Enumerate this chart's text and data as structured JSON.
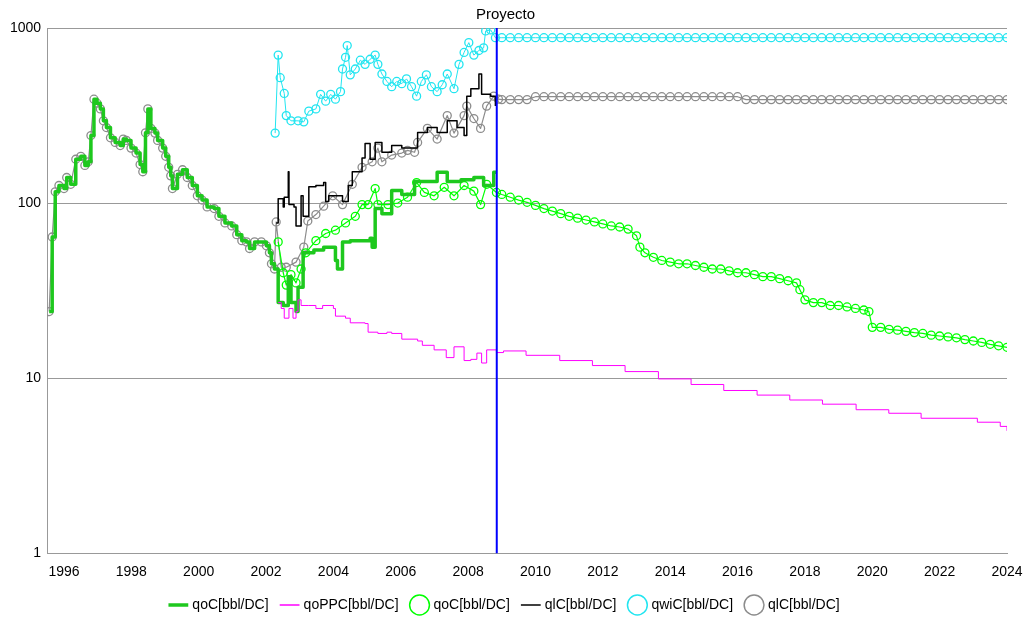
{
  "chart_data": {
    "type": "line",
    "title": "Proyecto",
    "xlim": [
      1995.5,
      2024
    ],
    "xticks": [
      1996,
      1998,
      2000,
      2002,
      2004,
      2006,
      2008,
      2010,
      2012,
      2014,
      2016,
      2018,
      2020,
      2022,
      2024
    ],
    "ylim": [
      1,
      1000
    ],
    "yticks": [
      1,
      10,
      100,
      1000
    ],
    "log": "y",
    "grid": "y",
    "legend": "bottom",
    "ref_lines": [
      {
        "axis": "x",
        "value": 2008.85,
        "color": "#0000ff"
      }
    ],
    "series": [
      {
        "name": "qoC[bbl/DC]",
        "type": "step",
        "marker": "none",
        "color": "#1ec81e",
        "x": [
          1995.56,
          1995.65,
          1995.74,
          1995.85,
          1996.0,
          1996.08,
          1996.2,
          1996.35,
          1996.5,
          1996.62,
          1996.72,
          1996.8,
          1996.89,
          1996.98,
          1997.08,
          1997.17,
          1997.26,
          1997.38,
          1997.52,
          1997.67,
          1997.76,
          1997.85,
          1997.99,
          1998.14,
          1998.26,
          1998.34,
          1998.42,
          1998.49,
          1998.58,
          1998.7,
          1998.78,
          1998.93,
          1999.02,
          1999.11,
          1999.17,
          1999.22,
          1999.37,
          1999.52,
          1999.66,
          1999.81,
          1999.96,
          2000.1,
          2000.25,
          2000.46,
          2000.6,
          2000.78,
          2000.98,
          2001.13,
          2001.28,
          2001.42,
          2001.51,
          2001.66,
          2001.86,
          2002.01,
          2002.1,
          2002.16,
          2002.25,
          2002.36,
          2002.51,
          2002.66,
          2002.74,
          2002.89,
          2002.95,
          2003.1,
          2003.42,
          2003.71,
          2004.06,
          2004.12,
          2004.27,
          2004.5,
          2004.65,
          2005.09,
          2005.15,
          2005.24,
          2005.44,
          2005.73,
          2006.03,
          2006.41,
          2006.79,
          2007.08,
          2007.38,
          2007.79,
          2008.17,
          2008.46,
          2008.76,
          2008.84
        ],
        "values": [
          24,
          64,
          116,
          126,
          121,
          140,
          128,
          178,
          185,
          164,
          172,
          243,
          392,
          372,
          345,
          295,
          270,
          236,
          222,
          213,
          232,
          228,
          206,
          193,
          166,
          151,
          252,
          345,
          267,
          251,
          228,
          206,
          185,
          160,
          143,
          121,
          146,
          155,
          140,
          126,
          110,
          104,
          95,
          93,
          84,
          77,
          74,
          66,
          61,
          60,
          55,
          60,
          60,
          57,
          52,
          45,
          42,
          27,
          26,
          38,
          27,
          24,
          33,
          52,
          54,
          56,
          47,
          42,
          60,
          61,
          61,
          63,
          56,
          93,
          87,
          118,
          112,
          133,
          133,
          150,
          133,
          136,
          140,
          126,
          150,
          150
        ]
      },
      {
        "name": "qoPPC[bbl/DC]",
        "type": "step",
        "marker": "none",
        "color": "#ff00ff",
        "x": [
          2002.36,
          2002.45,
          2002.54,
          2002.68,
          2002.8,
          2002.89,
          2002.95,
          2003.04,
          2003.27,
          2003.48,
          2003.68,
          2004.0,
          2004.06,
          2004.36,
          2004.5,
          2004.94,
          2005.03,
          2005.32,
          2005.59,
          2005.73,
          2006.03,
          2006.5,
          2006.64,
          2006.99,
          2007.35,
          2007.58,
          2007.88,
          2008.08,
          2008.26,
          2008.4,
          2008.55,
          2008.84,
          2009.05,
          2009.72,
          2010.72,
          2011.69,
          2012.66,
          2013.65,
          2014.62,
          2015.59,
          2016.58,
          2017.55,
          2018.52,
          2019.52,
          2020.49,
          2021.45,
          2023.12,
          2023.8,
          2024.0
        ],
        "values": [
          27,
          25,
          22,
          25,
          22,
          24,
          28,
          26,
          26,
          25,
          26,
          25,
          22.6,
          22,
          20.7,
          20.5,
          18.3,
          18,
          18.3,
          18,
          16.7,
          16.3,
          15.4,
          14.5,
          13.1,
          15.1,
          12.6,
          12.8,
          13.9,
          12.2,
          14.5,
          14,
          14.3,
          13.5,
          12.6,
          11.8,
          10.9,
          9.9,
          9.2,
          8.5,
          8,
          7.5,
          7.1,
          6.6,
          6.3,
          5.9,
          5.6,
          5.3,
          5.0
        ]
      },
      {
        "name": "qoC[bbl/DC]",
        "marker": "circle",
        "color": "#00ff00",
        "x": [
          2002.36,
          2002.51,
          2002.6,
          2002.74,
          2002.89,
          2003.04,
          2003.18,
          2003.48,
          2003.77,
          2004.06,
          2004.36,
          2004.65,
          2004.85,
          2005.03,
          2005.24,
          2005.32,
          2005.62,
          2005.91,
          2006.2,
          2006.47,
          2006.7,
          2006.99,
          2007.29,
          2007.58,
          2007.88,
          2008.17,
          2008.37,
          2008.55,
          2008.84,
          2009.0,
          2009.25,
          2009.5,
          2009.75,
          2010.0,
          2010.25,
          2010.5,
          2010.75,
          2011.0,
          2011.25,
          2011.5,
          2011.75,
          2012.0,
          2012.25,
          2012.5,
          2012.75,
          2013.0,
          2013.1,
          2013.25,
          2013.5,
          2013.75,
          2014.0,
          2014.25,
          2014.5,
          2014.75,
          2015.0,
          2015.25,
          2015.5,
          2015.75,
          2016.0,
          2016.25,
          2016.5,
          2016.75,
          2017.0,
          2017.25,
          2017.5,
          2017.75,
          2017.85,
          2018.0,
          2018.25,
          2018.5,
          2018.75,
          2019.0,
          2019.25,
          2019.5,
          2019.75,
          2019.9,
          2020.0,
          2020.25,
          2020.5,
          2020.75,
          2021.0,
          2021.25,
          2021.5,
          2021.75,
          2022.0,
          2022.25,
          2022.5,
          2022.75,
          2023.0,
          2023.25,
          2023.5,
          2023.75,
          2024.0
        ],
        "values": [
          60,
          40,
          34,
          39,
          35,
          42,
          52,
          61,
          67,
          70,
          77,
          84,
          98,
          98,
          121,
          98,
          98,
          100,
          108,
          131,
          115,
          110,
          123,
          110,
          126,
          117,
          98,
          128,
          115,
          112,
          108,
          104,
          101,
          97,
          93,
          90,
          87,
          84,
          82,
          80,
          78,
          76,
          74,
          73,
          71,
          65,
          56,
          52,
          49,
          47,
          46,
          45,
          45,
          44,
          43,
          42,
          42,
          41,
          40,
          40,
          39,
          38,
          38,
          37,
          36,
          35,
          32,
          28,
          27,
          27,
          26,
          26,
          25.5,
          25,
          24.5,
          24,
          19.5,
          19.5,
          19,
          18.8,
          18.5,
          18.2,
          18,
          17.6,
          17.4,
          17.2,
          17,
          16.6,
          16.3,
          16,
          15.6,
          15.3,
          15
        ]
      },
      {
        "name": "qlC[bbl/DC]",
        "type": "step",
        "marker": "none",
        "color": "#000000",
        "x": [
          2002.3,
          2002.36,
          2002.51,
          2002.54,
          2002.66,
          2002.68,
          2002.83,
          2002.89,
          2003.04,
          2003.1,
          2003.27,
          2003.48,
          2003.71,
          2003.77,
          2003.86,
          2004.27,
          2004.44,
          2004.56,
          2004.85,
          2004.94,
          2005.09,
          2005.24,
          2005.44,
          2005.73,
          2006.03,
          2006.2,
          2006.5,
          2006.79,
          2007.08,
          2007.38,
          2007.67,
          2007.88,
          2007.96,
          2008.08,
          2008.32,
          2008.4,
          2008.67,
          2008.81
        ],
        "values": [
          77,
          106,
          95,
          108,
          151,
          98,
          95,
          74,
          110,
          84,
          124,
          126,
          131,
          102,
          110,
          102,
          126,
          151,
          181,
          219,
          178,
          222,
          195,
          213,
          206,
          206,
          253,
          270,
          253,
          295,
          270,
          243,
          408,
          450,
          546,
          418,
          408,
          358
        ]
      },
      {
        "name": "qwiC[bbl/DC]",
        "marker": "circle",
        "color": "#22e5f0",
        "x": [
          2002.27,
          2002.36,
          2002.42,
          2002.54,
          2002.6,
          2002.74,
          2002.95,
          2003.12,
          2003.27,
          2003.48,
          2003.62,
          2003.77,
          2003.92,
          2004.06,
          2004.21,
          2004.27,
          2004.36,
          2004.41,
          2004.5,
          2004.65,
          2004.8,
          2004.94,
          2005.09,
          2005.24,
          2005.32,
          2005.44,
          2005.59,
          2005.73,
          2005.88,
          2006.03,
          2006.17,
          2006.32,
          2006.47,
          2006.61,
          2006.76,
          2006.91,
          2007.08,
          2007.23,
          2007.38,
          2007.58,
          2007.73,
          2007.88,
          2008.02,
          2008.17,
          2008.32,
          2008.46,
          2008.52,
          2008.67,
          2008.81,
          2009.0,
          2009.25,
          2009.5,
          2009.75,
          2010.0,
          2010.25,
          2010.5,
          2010.75,
          2011.0,
          2011.25,
          2011.5,
          2011.75,
          2012.0,
          2012.25,
          2012.5,
          2012.75,
          2013.0,
          2013.25,
          2013.5,
          2013.75,
          2014.0,
          2014.25,
          2014.5,
          2014.75,
          2015.0,
          2015.25,
          2015.5,
          2015.75,
          2016.0,
          2016.25,
          2016.5,
          2016.75,
          2017.0,
          2017.25,
          2017.5,
          2017.75,
          2018.0,
          2018.25,
          2018.5,
          2018.75,
          2019.0,
          2019.25,
          2019.5,
          2019.75,
          2020.0,
          2020.25,
          2020.5,
          2020.75,
          2021.0,
          2021.25,
          2021.5,
          2021.75,
          2022.0,
          2022.25,
          2022.5,
          2022.75,
          2023.0,
          2023.25,
          2023.5,
          2023.75,
          2024.0
        ],
        "values": [
          251,
          700,
          520,
          423,
          316,
          295,
          295,
          291,
          335,
          345,
          418,
          382,
          418,
          392,
          433,
          583,
          680,
          794,
          540,
          583,
          655,
          620,
          663,
          700,
          620,
          546,
          495,
          462,
          495,
          481,
          512,
          462,
          408,
          495,
          540,
          462,
          433,
          474,
          546,
          450,
          620,
          725,
          825,
          700,
          744,
          770,
          962,
          975,
          880,
          880,
          880,
          880,
          880,
          880,
          880,
          880,
          880,
          880,
          880,
          880,
          880,
          880,
          880,
          880,
          880,
          880,
          880,
          880,
          880,
          880,
          880,
          880,
          880,
          880,
          880,
          880,
          880,
          880,
          880,
          880,
          880,
          880,
          880,
          880,
          880,
          880,
          880,
          880,
          880,
          880,
          880,
          880,
          880,
          880,
          880,
          880,
          880,
          880,
          880,
          880,
          880,
          880,
          880,
          880,
          880,
          880,
          880,
          880,
          880,
          880
        ]
      },
      {
        "name": "qlC[bbl/DC]",
        "marker": "circle",
        "color": "#8c8c8c",
        "x": [
          1995.56,
          1995.65,
          1995.74,
          1995.85,
          1996.0,
          1996.08,
          1996.2,
          1996.35,
          1996.5,
          1996.62,
          1996.72,
          1996.8,
          1996.89,
          1996.98,
          1997.08,
          1997.17,
          1997.26,
          1997.38,
          1997.52,
          1997.67,
          1997.76,
          1997.85,
          1997.99,
          1998.14,
          1998.26,
          1998.34,
          1998.42,
          1998.49,
          1998.58,
          1998.7,
          1998.78,
          1998.93,
          1999.02,
          1999.11,
          1999.17,
          1999.22,
          1999.37,
          1999.52,
          1999.66,
          1999.81,
          1999.96,
          2000.1,
          2000.25,
          2000.46,
          2000.6,
          2000.78,
          2000.98,
          2001.13,
          2001.28,
          2001.42,
          2001.51,
          2001.66,
          2001.86,
          2002.01,
          2002.1,
          2002.16,
          2002.25,
          2002.3,
          2002.45,
          2002.6,
          2002.89,
          2003.12,
          2003.24,
          2003.48,
          2003.71,
          2003.98,
          2004.27,
          2004.56,
          2004.85,
          2005.15,
          2005.32,
          2005.44,
          2005.73,
          2006.03,
          2006.2,
          2006.41,
          2006.5,
          2006.79,
          2007.08,
          2007.38,
          2007.58,
          2007.88,
          2007.96,
          2008.17,
          2008.37,
          2008.55,
          2008.76,
          2008.9,
          2009.0,
          2009.25,
          2009.5,
          2009.75,
          2010.0,
          2010.25,
          2010.5,
          2010.75,
          2011.0,
          2011.25,
          2011.5,
          2011.75,
          2012.0,
          2012.25,
          2012.5,
          2012.75,
          2013.0,
          2013.25,
          2013.5,
          2013.75,
          2014.0,
          2014.25,
          2014.5,
          2014.75,
          2015.0,
          2015.25,
          2015.5,
          2015.75,
          2016.0,
          2016.25,
          2016.5,
          2016.75,
          2017.0,
          2017.25,
          2017.5,
          2017.75,
          2018.0,
          2018.25,
          2018.5,
          2018.75,
          2019.0,
          2019.25,
          2019.5,
          2019.75,
          2020.0,
          2020.25,
          2020.5,
          2020.75,
          2021.0,
          2021.25,
          2021.5,
          2021.75,
          2022.0,
          2022.25,
          2022.5,
          2022.75,
          2023.0,
          2023.25,
          2023.5,
          2023.75,
          2024.0
        ],
        "values": [
          24,
          64,
          116,
          126,
          121,
          140,
          128,
          178,
          185,
          164,
          172,
          243,
          392,
          372,
          345,
          295,
          270,
          236,
          222,
          213,
          232,
          228,
          206,
          193,
          166,
          151,
          252,
          345,
          267,
          251,
          228,
          206,
          185,
          160,
          143,
          121,
          146,
          155,
          140,
          126,
          110,
          104,
          95,
          93,
          84,
          77,
          74,
          66,
          61,
          60,
          55,
          60,
          60,
          57,
          52,
          45,
          42,
          78,
          43,
          43,
          46,
          56,
          79,
          86,
          96,
          110,
          98,
          128,
          160,
          172,
          206,
          172,
          188,
          193,
          200,
          195,
          222,
          267,
          232,
          316,
          251,
          316,
          358,
          304,
          267,
          358,
          408,
          392,
          390,
          390,
          390,
          390,
          405,
          405,
          405,
          405,
          405,
          405,
          405,
          405,
          405,
          405,
          405,
          405,
          405,
          405,
          405,
          405,
          405,
          405,
          405,
          405,
          405,
          405,
          405,
          405,
          405,
          390,
          390,
          390,
          390,
          390,
          390,
          390,
          390,
          390,
          390,
          390,
          390,
          390,
          390,
          390,
          390,
          390,
          390,
          390,
          390,
          390,
          390,
          390,
          390,
          390,
          390,
          390,
          390,
          390,
          390,
          390,
          390
        ]
      }
    ]
  }
}
